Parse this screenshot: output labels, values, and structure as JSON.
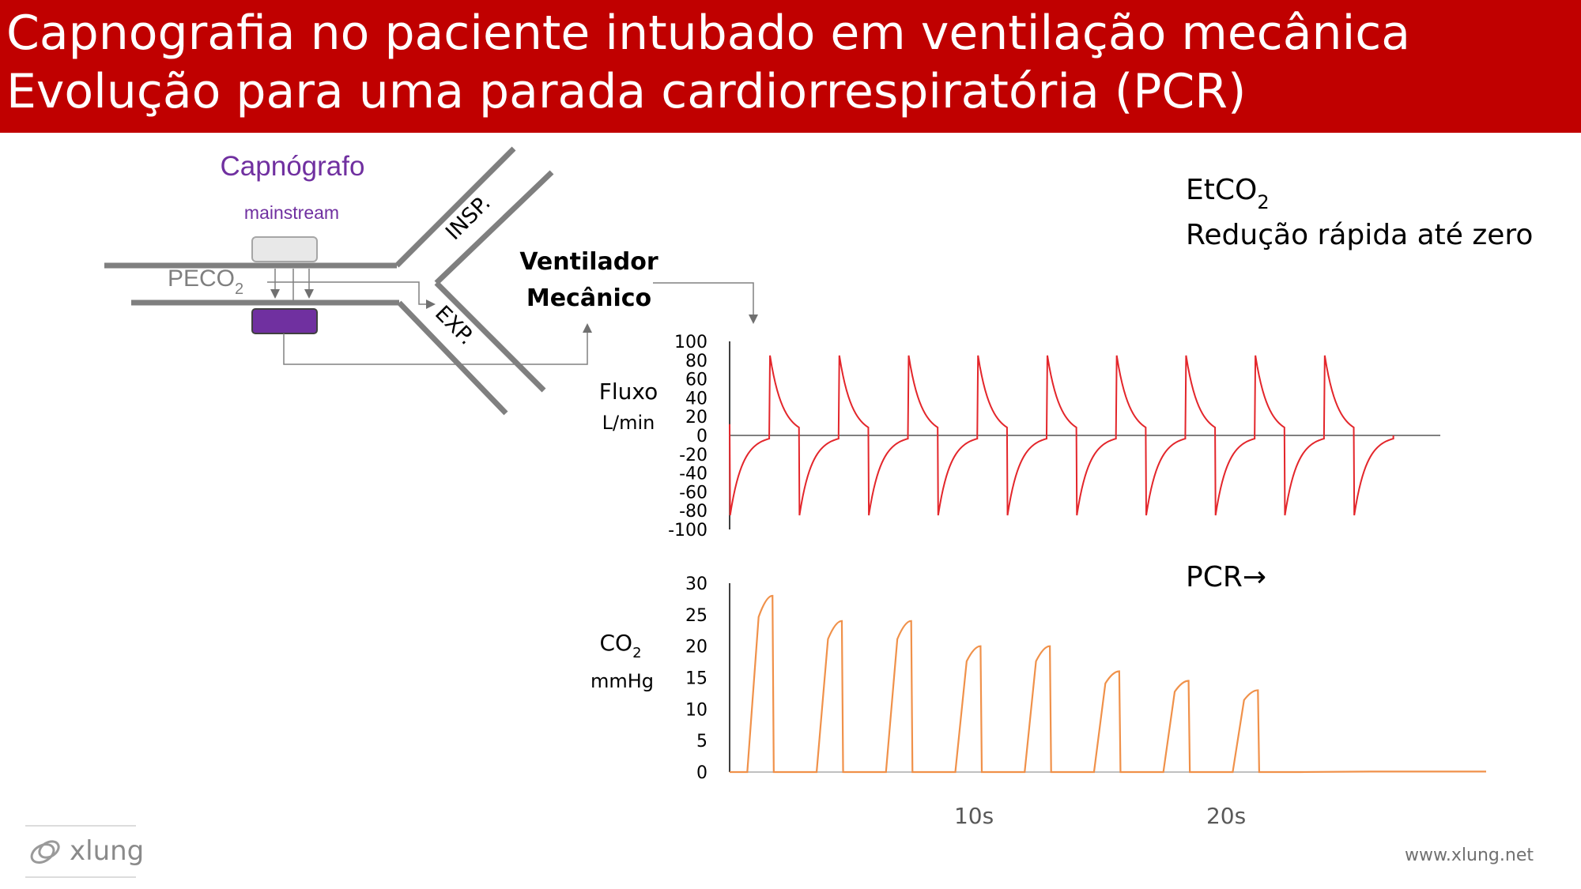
{
  "slide": {
    "title_line1": "Capnografia no paciente intubado em ventilação mecânica",
    "title_line2": "Evolução para uma parada cardiorrespiratória (PCR)"
  },
  "diagram": {
    "capnograph_label": "Capnógrafo",
    "mainstream_label": "mainstream",
    "peco2_label": "PECO",
    "peco2_sub": "2",
    "insp_label": "INSP.",
    "exp_label": "EXP.",
    "ventilator_line1": "Ventilador",
    "ventilator_line2": "Mecânico"
  },
  "annotations": {
    "etco2_main": "EtCO",
    "etco2_sub": "2",
    "etco2_desc": "Redução rápida até zero",
    "pcr": "PCR→"
  },
  "footer": {
    "brand": "xlung",
    "url": "www.xlung.net"
  },
  "colors": {
    "header_bg": "#c00000",
    "flow_line": "#e3262b",
    "co2_line": "#f0914a",
    "purple": "#7030a0",
    "tube": "#7f7f7f"
  },
  "chart_data": [
    {
      "type": "line",
      "title": "",
      "ylabel_line1": "Fluxo",
      "ylabel_line2": "L/min",
      "yticks": [
        100,
        80,
        60,
        40,
        20,
        0,
        -20,
        -40,
        -60,
        -80,
        -100
      ],
      "ylim": [
        -100,
        100
      ],
      "xlim": [
        0,
        30
      ],
      "breath_count": 10,
      "breath_period_s": 2.75,
      "inspiratory_peak": 85,
      "expiratory_peak": -85,
      "series": [
        {
          "name": "",
          "color": "#e3262b"
        }
      ]
    },
    {
      "type": "line",
      "title": "",
      "ylabel_line1": "CO",
      "ylabel_sub": "2",
      "ylabel_line2": "mmHg",
      "yticks": [
        30,
        25,
        20,
        15,
        10,
        5,
        0
      ],
      "ylim": [
        0,
        30
      ],
      "xlim": [
        0,
        30
      ],
      "xticks": [
        {
          "value": 9,
          "label": "10s"
        },
        {
          "value": 19,
          "label": "20s"
        }
      ],
      "breath_period_s": 2.75,
      "etco2_per_breath": [
        28,
        24,
        24,
        20,
        20,
        16,
        14.5,
        13,
        0,
        0,
        0
      ],
      "series": [
        {
          "name": "",
          "color": "#f0914a"
        }
      ]
    }
  ]
}
